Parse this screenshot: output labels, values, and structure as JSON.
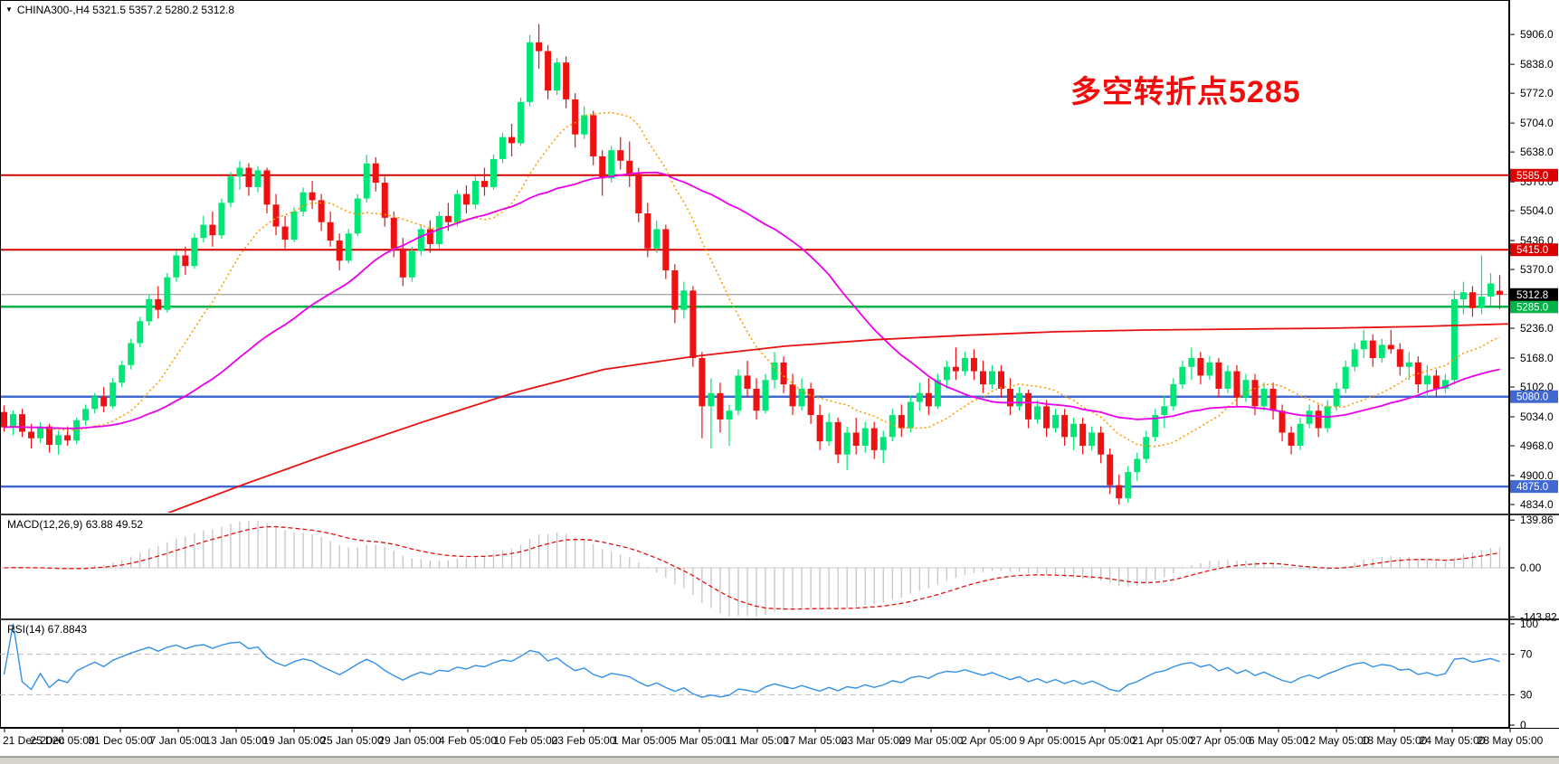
{
  "title_bar": {
    "symbol_line": "CHINA300-,H4  5321.5 5357.2 5280.2 5312.8",
    "collapse_icon": "▼"
  },
  "annotation": {
    "text": "多空转折点5285",
    "color": "#f20d0d"
  },
  "chart_data": {
    "type": "candlestick",
    "symbol": "CHINA300-",
    "timeframe": "H4",
    "ohlc_display": {
      "open": 5321.5,
      "high": 5357.2,
      "low": 5280.2,
      "close": 5312.8
    },
    "colors": {
      "bull": "#00e676",
      "bear": "#ee1111",
      "red_line": "#d40000",
      "red_label_bg": "#dd0000",
      "green_line": "#00b348",
      "blue_line": "#4168d0",
      "current_line": "#8a8a8a",
      "current_label_bg": "#000000",
      "ma_orange": "#ff9d00",
      "ma_magenta": "#eb00eb",
      "ma_red": "#e81010",
      "macd_histogram": "#c4c4c4",
      "macd_signal": "#e01010",
      "rsi_line": "#3390e8",
      "rsi_level": "#bbbbbb",
      "axis_text": "#000000"
    },
    "price_axis": {
      "max_at_top": 5964,
      "min_at_bottom": 4834,
      "ticks": [
        "5906.0",
        "5838.0",
        "5772.0",
        "5704.0",
        "5638.0",
        "5570.0",
        "5504.0",
        "5436.0",
        "5370.0",
        "5236.0",
        "5168.0",
        "5102.0",
        "5034.0",
        "4968.0",
        "4900.0",
        "4834.0"
      ]
    },
    "horizontal_lines": [
      {
        "price": 5585,
        "label": "5585.0",
        "kind": "resistance",
        "color": "#d40000",
        "label_bg": "#dd0000"
      },
      {
        "price": 5415,
        "label": "5415.0",
        "kind": "resistance",
        "color": "#d40000",
        "label_bg": "#dd0000"
      },
      {
        "price": 5285,
        "label": "5285.0",
        "kind": "pivot",
        "color": "#00b348",
        "label_bg": "#00b348"
      },
      {
        "price": 5080,
        "label": "5080.0",
        "kind": "support",
        "color": "#4168d0",
        "label_bg": "#4168d0"
      },
      {
        "price": 4875,
        "label": "4875.0",
        "kind": "support",
        "color": "#4168d0",
        "label_bg": "#4168d0"
      }
    ],
    "current_price": {
      "value": 5312.8,
      "label": "5312.8"
    },
    "time_labels": [
      "21 Dec 2020",
      "25 Dec 05:00",
      "31 Dec 05:00",
      "7 Jan 05:00",
      "13 Jan 05:00",
      "19 Jan 05:00",
      "25 Jan 05:00",
      "29 Jan 05:00",
      "4 Feb 05:00",
      "10 Feb 05:00",
      "23 Feb 05:00",
      "1 Mar 05:00",
      "5 Mar 05:00",
      "11 Mar 05:00",
      "17 Mar 05:00",
      "23 Mar 05:00",
      "29 Mar 05:00",
      "2 Apr 05:00",
      "9 Apr 05:00",
      "15 Apr 05:00",
      "21 Apr 05:00",
      "27 Apr 05:00",
      "6 May 05:00",
      "12 May 05:00",
      "18 May 05:00",
      "24 May 05:00",
      "28 May 05:00"
    ],
    "candles": [
      [
        5045,
        5060,
        5000,
        5010
      ],
      [
        5010,
        5048,
        4992,
        5040
      ],
      [
        5040,
        5052,
        4988,
        5000
      ],
      [
        5000,
        5018,
        4962,
        4985
      ],
      [
        4985,
        5022,
        4975,
        5012
      ],
      [
        5012,
        5018,
        4952,
        4970
      ],
      [
        4970,
        5002,
        4948,
        4992
      ],
      [
        4992,
        5012,
        4968,
        4980
      ],
      [
        4980,
        5032,
        4972,
        5026
      ],
      [
        5026,
        5062,
        5014,
        5052
      ],
      [
        5052,
        5088,
        5042,
        5080
      ],
      [
        5080,
        5102,
        5044,
        5058
      ],
      [
        5058,
        5122,
        5052,
        5112
      ],
      [
        5112,
        5162,
        5102,
        5152
      ],
      [
        5152,
        5212,
        5142,
        5202
      ],
      [
        5202,
        5262,
        5192,
        5252
      ],
      [
        5252,
        5312,
        5242,
        5302
      ],
      [
        5302,
        5332,
        5258,
        5278
      ],
      [
        5278,
        5362,
        5272,
        5352
      ],
      [
        5352,
        5412,
        5342,
        5402
      ],
      [
        5402,
        5422,
        5358,
        5378
      ],
      [
        5378,
        5452,
        5372,
        5442
      ],
      [
        5442,
        5492,
        5432,
        5472
      ],
      [
        5472,
        5502,
        5422,
        5448
      ],
      [
        5448,
        5532,
        5440,
        5522
      ],
      [
        5522,
        5592,
        5512,
        5582
      ],
      [
        5582,
        5617,
        5552,
        5602
      ],
      [
        5602,
        5612,
        5538,
        5558
      ],
      [
        5558,
        5606,
        5546,
        5596
      ],
      [
        5596,
        5602,
        5498,
        5518
      ],
      [
        5518,
        5542,
        5448,
        5468
      ],
      [
        5468,
        5492,
        5418,
        5438
      ],
      [
        5438,
        5512,
        5432,
        5502
      ],
      [
        5502,
        5557,
        5492,
        5546
      ],
      [
        5546,
        5572,
        5508,
        5528
      ],
      [
        5528,
        5542,
        5458,
        5478
      ],
      [
        5478,
        5502,
        5422,
        5436
      ],
      [
        5436,
        5452,
        5368,
        5390
      ],
      [
        5390,
        5462,
        5384,
        5452
      ],
      [
        5452,
        5542,
        5446,
        5532
      ],
      [
        5532,
        5632,
        5522,
        5612
      ],
      [
        5612,
        5626,
        5548,
        5568
      ],
      [
        5568,
        5582,
        5468,
        5488
      ],
      [
        5488,
        5502,
        5398,
        5418
      ],
      [
        5418,
        5442,
        5332,
        5352
      ],
      [
        5352,
        5422,
        5342,
        5412
      ],
      [
        5412,
        5472,
        5402,
        5462
      ],
      [
        5462,
        5482,
        5408,
        5428
      ],
      [
        5428,
        5502,
        5418,
        5492
      ],
      [
        5492,
        5522,
        5458,
        5478
      ],
      [
        5478,
        5552,
        5468,
        5542
      ],
      [
        5542,
        5562,
        5498,
        5518
      ],
      [
        5518,
        5582,
        5508,
        5572
      ],
      [
        5572,
        5602,
        5538,
        5558
      ],
      [
        5558,
        5632,
        5552,
        5622
      ],
      [
        5622,
        5682,
        5612,
        5672
      ],
      [
        5672,
        5702,
        5628,
        5658
      ],
      [
        5658,
        5762,
        5652,
        5752
      ],
      [
        5752,
        5905,
        5742,
        5888
      ],
      [
        5888,
        5930,
        5828,
        5868
      ],
      [
        5868,
        5882,
        5758,
        5778
      ],
      [
        5778,
        5852,
        5768,
        5842
      ],
      [
        5842,
        5856,
        5738,
        5758
      ],
      [
        5758,
        5772,
        5648,
        5678
      ],
      [
        5678,
        5742,
        5668,
        5722
      ],
      [
        5722,
        5732,
        5608,
        5628
      ],
      [
        5628,
        5642,
        5538,
        5578
      ],
      [
        5578,
        5652,
        5568,
        5642
      ],
      [
        5642,
        5672,
        5598,
        5618
      ],
      [
        5618,
        5662,
        5558,
        5588
      ],
      [
        5588,
        5602,
        5478,
        5498
      ],
      [
        5498,
        5522,
        5398,
        5418
      ],
      [
        5418,
        5482,
        5408,
        5462
      ],
      [
        5462,
        5472,
        5348,
        5368
      ],
      [
        5368,
        5382,
        5248,
        5278
      ],
      [
        5278,
        5342,
        5258,
        5322
      ],
      [
        5322,
        5332,
        5148,
        5168
      ],
      [
        5168,
        5182,
        4985,
        5058
      ],
      [
        5058,
        5122,
        4962,
        5088
      ],
      [
        5088,
        5112,
        4998,
        5028
      ],
      [
        5028,
        5062,
        4968,
        5048
      ],
      [
        5048,
        5142,
        5038,
        5128
      ],
      [
        5128,
        5162,
        5078,
        5098
      ],
      [
        5098,
        5122,
        5028,
        5048
      ],
      [
        5048,
        5132,
        5042,
        5118
      ],
      [
        5118,
        5182,
        5098,
        5158
      ],
      [
        5158,
        5172,
        5088,
        5108
      ],
      [
        5108,
        5132,
        5038,
        5058
      ],
      [
        5058,
        5122,
        5048,
        5098
      ],
      [
        5098,
        5112,
        5018,
        5038
      ],
      [
        5038,
        5062,
        4958,
        4978
      ],
      [
        4978,
        5042,
        4968,
        5022
      ],
      [
        5022,
        5032,
        4928,
        4948
      ],
      [
        4948,
        5012,
        4913,
        4998
      ],
      [
        4998,
        5032,
        4948,
        4968
      ],
      [
        4968,
        5022,
        4952,
        5008
      ],
      [
        5008,
        5022,
        4938,
        4958
      ],
      [
        4958,
        5002,
        4928,
        4988
      ],
      [
        4988,
        5052,
        4978,
        5038
      ],
      [
        5038,
        5062,
        4988,
        5008
      ],
      [
        5008,
        5082,
        4998,
        5068
      ],
      [
        5068,
        5112,
        5048,
        5088
      ],
      [
        5088,
        5122,
        5038,
        5058
      ],
      [
        5058,
        5132,
        5052,
        5118
      ],
      [
        5118,
        5162,
        5098,
        5148
      ],
      [
        5148,
        5192,
        5118,
        5138
      ],
      [
        5138,
        5182,
        5128,
        5168
      ],
      [
        5168,
        5188,
        5118,
        5138
      ],
      [
        5138,
        5162,
        5088,
        5108
      ],
      [
        5108,
        5152,
        5098,
        5138
      ],
      [
        5138,
        5152,
        5078,
        5098
      ],
      [
        5098,
        5122,
        5038,
        5058
      ],
      [
        5058,
        5102,
        5048,
        5088
      ],
      [
        5088,
        5096,
        5008,
        5028
      ],
      [
        5028,
        5072,
        5018,
        5058
      ],
      [
        5058,
        5072,
        4988,
        5008
      ],
      [
        5008,
        5052,
        4998,
        5038
      ],
      [
        5038,
        5052,
        4968,
        4988
      ],
      [
        4988,
        5032,
        4958,
        5018
      ],
      [
        5018,
        5032,
        4948,
        4968
      ],
      [
        4968,
        5012,
        4958,
        4998
      ],
      [
        4998,
        5012,
        4928,
        4948
      ],
      [
        4948,
        4962,
        4858,
        4878
      ],
      [
        4878,
        4902,
        4834,
        4848
      ],
      [
        4848,
        4922,
        4838,
        4908
      ],
      [
        4908,
        4952,
        4888,
        4938
      ],
      [
        4938,
        5002,
        4928,
        4988
      ],
      [
        4988,
        5052,
        4978,
        5038
      ],
      [
        5038,
        5082,
        5008,
        5058
      ],
      [
        5058,
        5122,
        5048,
        5108
      ],
      [
        5108,
        5162,
        5098,
        5148
      ],
      [
        5148,
        5192,
        5118,
        5168
      ],
      [
        5168,
        5182,
        5108,
        5128
      ],
      [
        5128,
        5172,
        5118,
        5158
      ],
      [
        5158,
        5168,
        5078,
        5098
      ],
      [
        5098,
        5152,
        5088,
        5138
      ],
      [
        5138,
        5152,
        5058,
        5078
      ],
      [
        5078,
        5132,
        5068,
        5118
      ],
      [
        5118,
        5132,
        5038,
        5058
      ],
      [
        5058,
        5112,
        5048,
        5098
      ],
      [
        5098,
        5112,
        5028,
        5048
      ],
      [
        5048,
        5062,
        4978,
        4998
      ],
      [
        4998,
        5012,
        4948,
        4968
      ],
      [
        4968,
        5032,
        4958,
        5018
      ],
      [
        5018,
        5062,
        5008,
        5048
      ],
      [
        5048,
        5062,
        4988,
        5008
      ],
      [
        5008,
        5072,
        4998,
        5058
      ],
      [
        5058,
        5112,
        5048,
        5098
      ],
      [
        5098,
        5162,
        5088,
        5148
      ],
      [
        5148,
        5202,
        5138,
        5188
      ],
      [
        5188,
        5232,
        5168,
        5208
      ],
      [
        5208,
        5222,
        5148,
        5168
      ],
      [
        5168,
        5212,
        5158,
        5198
      ],
      [
        5198,
        5232,
        5178,
        5188
      ],
      [
        5188,
        5202,
        5128,
        5148
      ],
      [
        5148,
        5182,
        5118,
        5158
      ],
      [
        5158,
        5172,
        5088,
        5108
      ],
      [
        5108,
        5152,
        5078,
        5128
      ],
      [
        5128,
        5142,
        5078,
        5098
      ],
      [
        5098,
        5132,
        5088,
        5118
      ],
      [
        5118,
        5322,
        5108,
        5302
      ],
      [
        5302,
        5342,
        5268,
        5318
      ],
      [
        5318,
        5332,
        5262,
        5282
      ],
      [
        5282,
        5402,
        5268,
        5308
      ],
      [
        5308,
        5362,
        5288,
        5338
      ],
      [
        5321.5,
        5357.2,
        5280.2,
        5312.8
      ]
    ],
    "moving_averages": {
      "orange": {
        "period": 13,
        "style": "dotted"
      },
      "magenta": {
        "period": 34,
        "style": "solid"
      },
      "long_red_keypoints": [
        [
          0.0,
          4640
        ],
        [
          0.06,
          4730
        ],
        [
          0.1,
          4800
        ],
        [
          0.16,
          4878
        ],
        [
          0.22,
          4952
        ],
        [
          0.28,
          5022
        ],
        [
          0.34,
          5088
        ],
        [
          0.4,
          5142
        ],
        [
          0.46,
          5172
        ],
        [
          0.52,
          5195
        ],
        [
          0.58,
          5210
        ],
        [
          0.64,
          5220
        ],
        [
          0.7,
          5228
        ],
        [
          0.76,
          5232
        ],
        [
          0.82,
          5234
        ],
        [
          0.88,
          5236
        ],
        [
          0.94,
          5240
        ],
        [
          1.0,
          5246
        ]
      ]
    },
    "macd": {
      "label": "MACD(12,26,9) 63.88 49.52",
      "fast": 12,
      "slow": 26,
      "signal": 9,
      "main_value": 63.88,
      "signal_value": 49.52,
      "axis_ticks": [
        "139.86",
        "0.00",
        "-143.82"
      ],
      "axis_tick_values": [
        139.86,
        0,
        -143.82
      ]
    },
    "rsi": {
      "label": "RSI(14) 67.8843",
      "period": 14,
      "value": 67.8843,
      "axis_ticks": [
        "100",
        "70",
        "30",
        "0"
      ],
      "axis_tick_values": [
        100,
        70,
        30,
        0
      ],
      "levels": [
        70,
        30
      ]
    }
  }
}
